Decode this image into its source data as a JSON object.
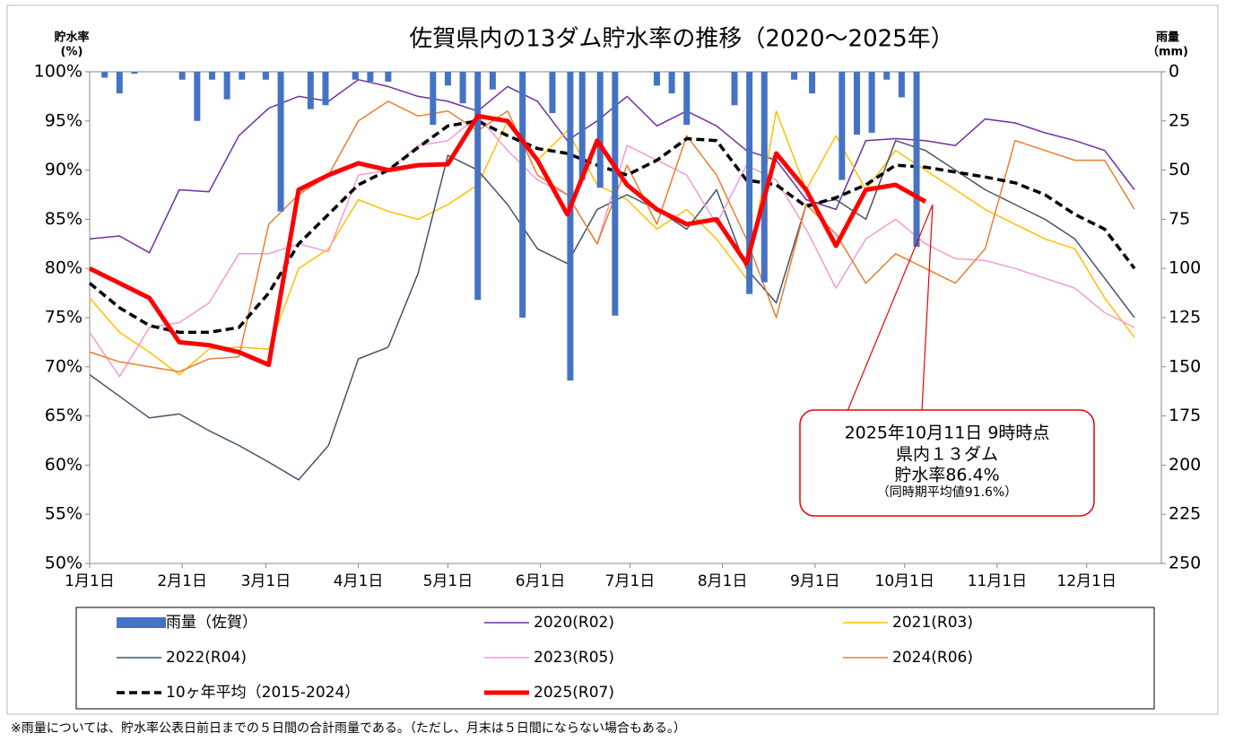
{
  "chart_data": {
    "type": "line",
    "title": "佐賀県内の13ダム貯水率の推移（2020～2025年）",
    "y_label": "貯水率",
    "y_label_unit": "(%)",
    "y2_label": "雨量",
    "y2_label_unit": "（mm)",
    "xlim": [
      0,
      359
    ],
    "ylim": [
      50,
      100
    ],
    "y2lim": [
      250,
      0
    ],
    "grid": false,
    "xticks": [
      {
        "value": 0,
        "label": "1月1日"
      },
      {
        "value": 31,
        "label": "2月1日"
      },
      {
        "value": 59,
        "label": "3月1日"
      },
      {
        "value": 90,
        "label": "4月1日"
      },
      {
        "value": 120,
        "label": "5月1日"
      },
      {
        "value": 151,
        "label": "6月1日"
      },
      {
        "value": 181,
        "label": "7月1日"
      },
      {
        "value": 212,
        "label": "8月1日"
      },
      {
        "value": 243,
        "label": "9月1日"
      },
      {
        "value": 273,
        "label": "10月1日"
      },
      {
        "value": 304,
        "label": "11月1日"
      },
      {
        "value": 334,
        "label": "12月1日"
      }
    ],
    "yticks": [
      {
        "value": 50,
        "label": "50%"
      },
      {
        "value": 55,
        "label": "55%"
      },
      {
        "value": 60,
        "label": "60%"
      },
      {
        "value": 65,
        "label": "65%"
      },
      {
        "value": 70,
        "label": "70%"
      },
      {
        "value": 75,
        "label": "75%"
      },
      {
        "value": 80,
        "label": "80%"
      },
      {
        "value": 85,
        "label": "85%"
      },
      {
        "value": 90,
        "label": "90%"
      },
      {
        "value": 95,
        "label": "95%"
      },
      {
        "value": 100,
        "label": "100%"
      }
    ],
    "y2ticks": [
      0,
      25,
      50,
      75,
      100,
      125,
      150,
      175,
      200,
      225,
      250
    ],
    "x": [
      0,
      10,
      20,
      30,
      40,
      50,
      60,
      70,
      80,
      90,
      100,
      110,
      120,
      130,
      140,
      150,
      160,
      170,
      180,
      190,
      200,
      210,
      220,
      230,
      240,
      250,
      260,
      270,
      280,
      290,
      300,
      310,
      320,
      330,
      340,
      350
    ],
    "series": [
      {
        "name": "雨量（佐賀）",
        "type": "bar",
        "axis": "y2",
        "color": "#4472c4",
        "x": [
          5,
          10,
          15,
          31,
          36,
          41,
          46,
          51,
          59,
          64,
          74,
          79,
          89,
          94,
          100,
          115,
          120,
          125,
          130,
          135,
          145,
          155,
          161,
          165,
          171,
          176,
          190,
          195,
          200,
          216,
          221,
          226,
          236,
          242,
          252,
          257,
          262,
          267,
          272,
          277
        ],
        "values": [
          3,
          11,
          1,
          4,
          25,
          4,
          14,
          4,
          4,
          71,
          19,
          17,
          4,
          5,
          5,
          27,
          7,
          16,
          116,
          9,
          125,
          21,
          157,
          55,
          59,
          124,
          7,
          11,
          27,
          17,
          113,
          107,
          4,
          11,
          55,
          32,
          31,
          4,
          13,
          89
        ]
      },
      {
        "name": "2020(R02)",
        "color": "#7030a0",
        "line_width": 1.5,
        "values": [
          83,
          83.3,
          81.6,
          88,
          87.8,
          93.5,
          96.3,
          97.5,
          97,
          99.2,
          98.5,
          97.5,
          97,
          96,
          98.5,
          97,
          93,
          95,
          97.5,
          94.5,
          96,
          94.5,
          92,
          91,
          87,
          86,
          93,
          93.2,
          93,
          92.5,
          95.2,
          94.8,
          93.8,
          93,
          92,
          88
        ]
      },
      {
        "name": "2021(R03)",
        "color": "#ffc000",
        "line_width": 1.5,
        "values": [
          77,
          73.5,
          71.5,
          69.2,
          71.8,
          72,
          71.8,
          80,
          82,
          87,
          85.8,
          85,
          86.5,
          88.5,
          95,
          91,
          94,
          88.5,
          87,
          84,
          86,
          83,
          79,
          96,
          88,
          93.5,
          88,
          92,
          90,
          88,
          86,
          84.5,
          83,
          82,
          77,
          73
        ]
      },
      {
        "name": "2022(R04)",
        "color": "#44546a",
        "line_width": 1.5,
        "values": [
          69.2,
          67,
          64.8,
          65.2,
          63.5,
          62,
          60.3,
          58.5,
          62,
          70.8,
          72,
          79.5,
          91.5,
          90,
          86.5,
          82,
          80.5,
          86,
          87.5,
          86,
          84,
          88,
          80,
          76.5,
          86.5,
          87,
          85,
          93,
          92,
          90,
          88,
          86.5,
          85,
          83,
          79,
          75
        ]
      },
      {
        "name": "2023(R05)",
        "color": "#f49ad6",
        "line_width": 1.5,
        "values": [
          73.5,
          69,
          74,
          74.5,
          76.5,
          81.5,
          81.5,
          82.5,
          81.7,
          89.5,
          90,
          92.5,
          93,
          95.5,
          92,
          89,
          87.5,
          82.5,
          92.5,
          91,
          89.5,
          84.5,
          90.5,
          89,
          84,
          78,
          83,
          85,
          82.5,
          81,
          80.8,
          80,
          79,
          78,
          75.5,
          74
        ]
      },
      {
        "name": "2024(R06)",
        "color": "#ed7d31",
        "line_width": 1.5,
        "values": [
          71.5,
          70.5,
          70,
          69.5,
          70.8,
          71,
          84.5,
          87.5,
          89.5,
          95,
          97,
          95.5,
          96,
          94,
          96,
          89.5,
          87.5,
          82.5,
          90.5,
          84.5,
          93.5,
          89.5,
          83,
          75,
          86.5,
          83.5,
          78.5,
          81.5,
          80,
          78.5,
          82,
          93,
          92,
          91,
          91,
          86
        ]
      },
      {
        "name": "10ヶ年平均（2015-2024）",
        "color": "#000000",
        "line_width": 3.5,
        "dashed": true,
        "values": [
          78.5,
          76,
          74.2,
          73.5,
          73.5,
          74,
          77.5,
          82.5,
          85.5,
          88.5,
          90,
          92.3,
          94.5,
          95,
          93.5,
          92.2,
          91.7,
          90.5,
          89.5,
          91,
          93.2,
          93,
          89,
          88.5,
          86.3,
          87.2,
          88.5,
          90.5,
          90.3,
          89.8,
          89.3,
          88.7,
          87.5,
          85.5,
          84,
          80
        ]
      },
      {
        "name": "2025(R07)",
        "color": "#ff0000",
        "line_width": 5,
        "values": [
          80,
          78.5,
          77,
          72.5,
          72.2,
          71.5,
          70.2,
          88,
          89.5,
          90.7,
          90,
          90.5,
          90.6,
          95.5,
          95,
          91,
          85.5,
          93,
          88.5,
          86,
          84.5,
          85,
          80.5,
          91.7,
          88,
          82.3,
          88,
          88.5,
          86.8,
          null,
          null,
          null,
          null,
          null,
          null,
          null
        ]
      }
    ],
    "annotation": [
      "2025年10月11日  9時時点",
      "県内１３ダム",
      "貯水率86.4%",
      "（同時期平均値91.6%）"
    ],
    "footnote": "※雨量については、貯水率公表日前日までの５日間の合計雨量である。（ただし、月末は５日間にならない場合もある。）"
  }
}
